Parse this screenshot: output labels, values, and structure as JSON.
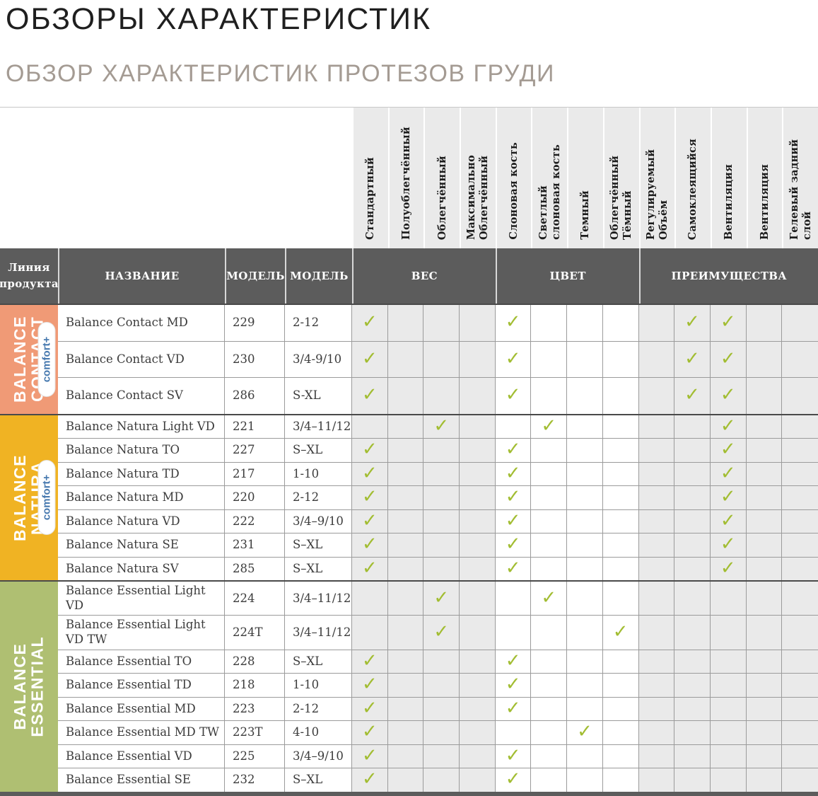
{
  "page": {
    "title": "ОБЗОРЫ ХАРАКТЕРИСТИК",
    "subtitle": "ОБЗОР ХАРАКТЕРИСТИК ПРОТЕЗОВ ГРУДИ"
  },
  "table": {
    "corner_header": {
      "product_line": "Линия продукта",
      "name": "НАЗВАНИЕ",
      "model": "МОДЕЛЬ",
      "size_model": "МОДЕЛЬ"
    },
    "column_groups": [
      {
        "label": "ВЕС",
        "span": 4
      },
      {
        "label": "ЦВЕТ",
        "span": 4
      },
      {
        "label": "ПРЕИМУЩЕСТВА",
        "span": 5
      }
    ],
    "feature_columns": [
      {
        "lines": [
          "Стандартный"
        ],
        "section": "weight"
      },
      {
        "lines": [
          "Полуоблегчённый"
        ],
        "section": "weight"
      },
      {
        "lines": [
          "Облегчённый"
        ],
        "section": "weight"
      },
      {
        "lines": [
          "Максимально",
          "Облегчённый"
        ],
        "section": "weight"
      },
      {
        "lines": [
          "Слоновая кость"
        ],
        "section": "color"
      },
      {
        "lines": [
          "Светлый",
          "слоновая кость"
        ],
        "section": "color"
      },
      {
        "lines": [
          "Темный"
        ],
        "section": "color"
      },
      {
        "lines": [
          "Облегчённый Тёмный"
        ],
        "section": "color"
      },
      {
        "lines": [
          "Регулируемый Объём"
        ],
        "section": "benefit"
      },
      {
        "lines": [
          "Самоклеящийся"
        ],
        "section": "benefit"
      },
      {
        "lines": [
          "Вентиляция"
        ],
        "section": "benefit"
      },
      {
        "lines": [
          "Вентиляция"
        ],
        "section": "benefit"
      },
      {
        "lines": [
          "Гелевый задний слой"
        ],
        "section": "benefit"
      }
    ],
    "groups": [
      {
        "name_lines": [
          "BALANCE",
          "CONTACT"
        ],
        "badge": "comfort+",
        "color": "#F09A76",
        "rows": [
          {
            "name": "Balance Contact MD",
            "model": "229",
            "size": "2-12",
            "checks": [
              0,
              4,
              9,
              10
            ]
          },
          {
            "name": "Balance Contact VD",
            "model": "230",
            "size": "3/4-9/10",
            "checks": [
              0,
              4,
              9,
              10
            ]
          },
          {
            "name": "Balance Contact SV",
            "model": "286",
            "size": "S-XL",
            "checks": [
              0,
              4,
              9,
              10
            ]
          }
        ]
      },
      {
        "name_lines": [
          "BALANCE",
          "NATURA"
        ],
        "badge": "comfort+",
        "color": "#F0B323",
        "rows": [
          {
            "name": "Balance Natura Light VD",
            "model": "221",
            "size": "3/4–11/12",
            "checks": [
              2,
              5,
              10
            ]
          },
          {
            "name": "Balance Natura TO",
            "model": "227",
            "size": "S–XL",
            "checks": [
              0,
              4,
              10
            ]
          },
          {
            "name": "Balance Natura TD",
            "model": "217",
            "size": "1-10",
            "checks": [
              0,
              4,
              10
            ]
          },
          {
            "name": "Balance Natura MD",
            "model": "220",
            "size": "2-12",
            "checks": [
              0,
              4,
              10
            ]
          },
          {
            "name": "Balance Natura VD",
            "model": "222",
            "size": "3/4–9/10",
            "checks": [
              0,
              4,
              10
            ]
          },
          {
            "name": "Balance Natura SE",
            "model": "231",
            "size": "S–XL",
            "checks": [
              0,
              4,
              10
            ]
          },
          {
            "name": "Balance Natura SV",
            "model": "285",
            "size": "S–XL",
            "checks": [
              0,
              4,
              10
            ]
          }
        ]
      },
      {
        "name_lines": [
          "BALANCE",
          "ESSENTIAL"
        ],
        "badge": null,
        "color": "#AFBF72",
        "rows": [
          {
            "name": "Balance Essential Light VD",
            "model": "224",
            "size": "3/4–11/12",
            "checks": [
              2,
              5
            ]
          },
          {
            "name": "Balance Essential Light VD TW",
            "model": "224T",
            "size": "3/4–11/12",
            "checks": [
              2,
              7
            ]
          },
          {
            "name": "Balance Essential TO",
            "model": "228",
            "size": "S–XL",
            "checks": [
              0,
              4
            ]
          },
          {
            "name": "Balance Essential TD",
            "model": "218",
            "size": "1-10",
            "checks": [
              0,
              4
            ]
          },
          {
            "name": "Balance Essential MD",
            "model": "223",
            "size": "2-12",
            "checks": [
              0,
              4
            ]
          },
          {
            "name": "Balance Essential MD TW",
            "model": "223T",
            "size": "4-10",
            "checks": [
              0,
              6
            ]
          },
          {
            "name": "Balance Essential VD",
            "model": "225",
            "size": "3/4–9/10",
            "checks": [
              0,
              4
            ]
          },
          {
            "name": "Balance Essential SE",
            "model": "232",
            "size": "S–XL",
            "checks": [
              0,
              4
            ]
          }
        ]
      }
    ],
    "check_color": "#A2BD32",
    "header_bg": "#5C5C5C",
    "badge_text_color": "#4779AF"
  }
}
